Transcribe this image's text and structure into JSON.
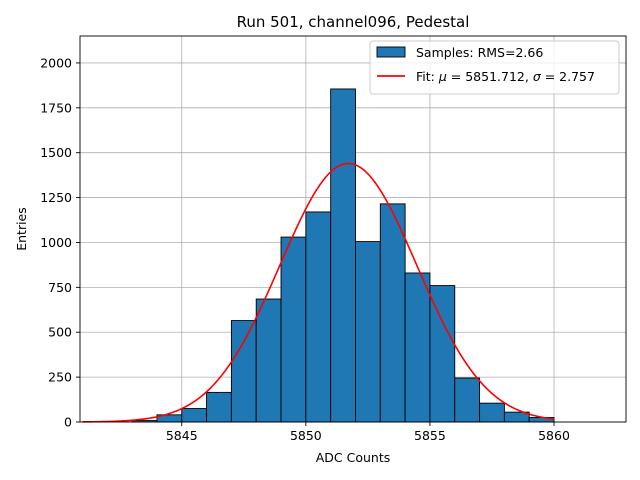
{
  "chart_data": {
    "type": "bar",
    "title": "Run 501, channel096, Pedestal",
    "xlabel": "ADC Counts",
    "ylabel": "Entries",
    "xlim": [
      5840.9,
      5862.9
    ],
    "ylim": [
      0,
      2150
    ],
    "xticks": [
      5845,
      5850,
      5855,
      5860
    ],
    "yticks": [
      0,
      250,
      500,
      750,
      1000,
      1250,
      1500,
      1750,
      2000
    ],
    "grid": true,
    "legend": "top-right",
    "bin_width": 1,
    "series": [
      {
        "name": "Samples: RMS=2.66",
        "kind": "histogram",
        "color": "#1f77b4",
        "bins": [
          {
            "left": 5843,
            "value": 8
          },
          {
            "left": 5844,
            "value": 40
          },
          {
            "left": 5845,
            "value": 75
          },
          {
            "left": 5846,
            "value": 165
          },
          {
            "left": 5847,
            "value": 565
          },
          {
            "left": 5848,
            "value": 685
          },
          {
            "left": 5849,
            "value": 1030
          },
          {
            "left": 5850,
            "value": 1170
          },
          {
            "left": 5851,
            "value": 1855
          },
          {
            "left": 5852,
            "value": 1005
          },
          {
            "left": 5853,
            "value": 1215
          },
          {
            "left": 5854,
            "value": 830
          },
          {
            "left": 5855,
            "value": 760
          },
          {
            "left": 5856,
            "value": 245
          },
          {
            "left": 5857,
            "value": 105
          },
          {
            "left": 5858,
            "value": 55
          },
          {
            "left": 5859,
            "value": 25
          }
        ]
      },
      {
        "name_prefix": "Fit: ",
        "mu_symbol": "μ",
        "mu_text": " = 5851.712, ",
        "sigma_symbol": "σ",
        "sigma_text": " = 2.757",
        "kind": "gaussian",
        "color": "#ff0000",
        "mu": 5851.712,
        "sigma": 2.757,
        "amplitude": 1440,
        "x_range": [
          5841,
          5860
        ]
      }
    ]
  }
}
